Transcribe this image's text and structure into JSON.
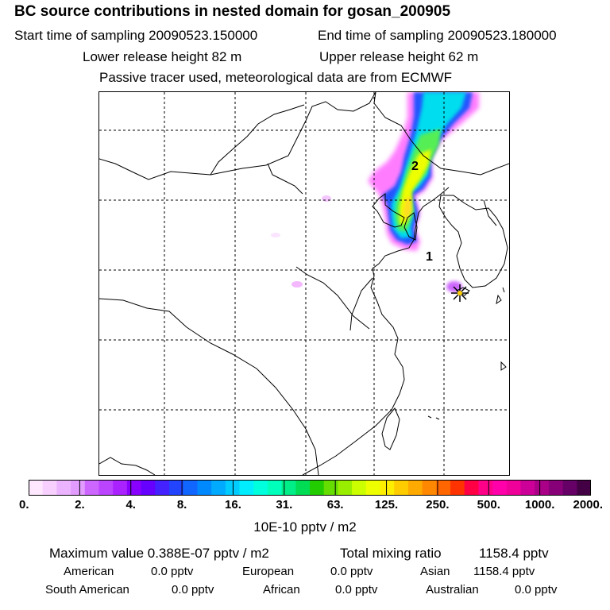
{
  "header": {
    "title": "BC  source contributions in nested domain for gosan_200905",
    "start_label": "Start time of sampling 20090523.150000",
    "end_label": "End time of sampling 20090523.180000",
    "lower_label": "Lower release height   82 m",
    "upper_label": "Upper release height   62 m",
    "note": "Passive tracer used, meteorological data are from ECMWF"
  },
  "map": {
    "markers": [
      "1",
      "2"
    ],
    "receptor_icon": "star-marker-icon"
  },
  "colorbar": {
    "tick_labels": [
      "0.",
      "2.",
      "4.",
      "8.",
      "16.",
      "31.",
      "63.",
      "125.",
      "250.",
      "500.",
      "1000.",
      "2000."
    ],
    "colors": [
      "#ffe8ff",
      "#f8d0ff",
      "#ecb4ff",
      "#e29cff",
      "#cc66ff",
      "#bb44ff",
      "#aa22ff",
      "#8800ff",
      "#6600ff",
      "#4422ff",
      "#2244ff",
      "#1166ff",
      "#0088ff",
      "#00aaff",
      "#00ccff",
      "#00eeff",
      "#00ffdd",
      "#00ffbb",
      "#00ee88",
      "#00dd55",
      "#22cc00",
      "#66dd00",
      "#99ee00",
      "#ccff00",
      "#eeff00",
      "#ffee00",
      "#ffcc00",
      "#ffaa00",
      "#ff8800",
      "#ff6600",
      "#ff3300",
      "#ff0044",
      "#ff0088",
      "#ff00aa",
      "#ee0099",
      "#cc0099",
      "#aa0088",
      "#880077",
      "#660066",
      "#440044"
    ],
    "units": "10E-10 pptv / m2"
  },
  "stats": {
    "max_label": "Maximum value  0.388E-07 pptv / m2",
    "total_label": "Total mixing ratio",
    "total_value": "1158.4 pptv",
    "regions": [
      {
        "name": "American",
        "value": "0.0 pptv"
      },
      {
        "name": "European",
        "value": "0.0 pptv"
      },
      {
        "name": "Asian",
        "value": "1158.4 pptv"
      },
      {
        "name": "South American",
        "value": "0.0 pptv"
      },
      {
        "name": "African",
        "value": "0.0 pptv"
      },
      {
        "name": "Australian",
        "value": "0.0 pptv"
      }
    ]
  }
}
